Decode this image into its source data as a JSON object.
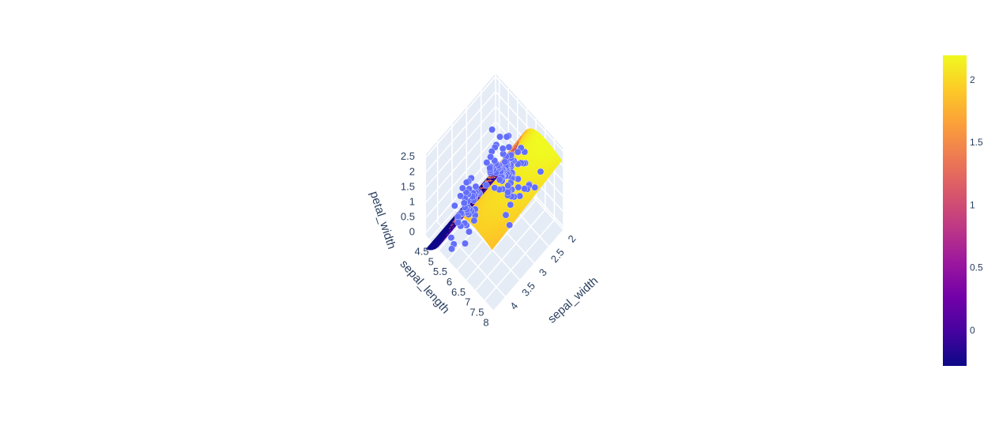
{
  "chart_data": {
    "type": "scatter",
    "subtype": "3d-scatter-with-surface",
    "title": "",
    "axes": {
      "x": {
        "label": "sepal_length",
        "ticks": [
          "4.5",
          "5",
          "5.5",
          "6",
          "6.5",
          "7",
          "7.5",
          "8"
        ],
        "range": [
          4.3,
          8.0
        ]
      },
      "y": {
        "label": "sepal_width",
        "ticks": [
          "2",
          "2.5",
          "3",
          "3.5",
          "4"
        ],
        "range": [
          2.0,
          4.4
        ]
      },
      "z": {
        "label": "petal_width",
        "ticks": [
          "0",
          "0.5",
          "1",
          "1.5",
          "2",
          "2.5"
        ],
        "range": [
          -0.1,
          2.6
        ]
      }
    },
    "grid": true,
    "colorbar": {
      "ticks": [
        "0",
        "0.5",
        "1",
        "1.5",
        "2"
      ],
      "range": [
        -0.28,
        2.2
      ],
      "colorscale": [
        "#0d0887",
        "#46039f",
        "#7201a8",
        "#9c179e",
        "#bd3786",
        "#d8576b",
        "#ed7953",
        "#fb9f3a",
        "#fdca26",
        "#f0f921"
      ],
      "placement": "right"
    },
    "marker_color": "#636efa",
    "points": [
      [
        5.1,
        3.5,
        0.2
      ],
      [
        4.9,
        3.0,
        0.2
      ],
      [
        4.7,
        3.2,
        0.2
      ],
      [
        4.6,
        3.1,
        0.2
      ],
      [
        5.0,
        3.6,
        0.2
      ],
      [
        5.4,
        3.9,
        0.4
      ],
      [
        4.6,
        3.4,
        0.3
      ],
      [
        5.0,
        3.4,
        0.2
      ],
      [
        4.4,
        2.9,
        0.2
      ],
      [
        4.9,
        3.1,
        0.1
      ],
      [
        5.4,
        3.7,
        0.2
      ],
      [
        4.8,
        3.4,
        0.2
      ],
      [
        4.8,
        3.0,
        0.1
      ],
      [
        4.3,
        3.0,
        0.1
      ],
      [
        5.8,
        4.0,
        0.2
      ],
      [
        5.7,
        4.4,
        0.4
      ],
      [
        5.4,
        3.9,
        0.4
      ],
      [
        5.1,
        3.5,
        0.3
      ],
      [
        5.7,
        3.8,
        0.3
      ],
      [
        5.1,
        3.8,
        0.3
      ],
      [
        5.4,
        3.4,
        0.2
      ],
      [
        5.1,
        3.7,
        0.4
      ],
      [
        4.6,
        3.6,
        0.2
      ],
      [
        5.1,
        3.3,
        0.5
      ],
      [
        4.8,
        3.4,
        0.2
      ],
      [
        5.0,
        3.0,
        0.2
      ],
      [
        5.0,
        3.4,
        0.4
      ],
      [
        5.2,
        3.5,
        0.2
      ],
      [
        5.2,
        3.4,
        0.2
      ],
      [
        4.7,
        3.2,
        0.2
      ],
      [
        4.8,
        3.1,
        0.2
      ],
      [
        5.4,
        3.4,
        0.4
      ],
      [
        5.2,
        4.1,
        0.1
      ],
      [
        5.5,
        4.2,
        0.2
      ],
      [
        4.9,
        3.1,
        0.2
      ],
      [
        5.0,
        3.2,
        0.2
      ],
      [
        5.5,
        3.5,
        0.2
      ],
      [
        4.4,
        3.0,
        0.2
      ],
      [
        5.1,
        3.4,
        0.2
      ],
      [
        5.0,
        3.5,
        0.3
      ],
      [
        4.5,
        2.3,
        0.3
      ],
      [
        4.4,
        3.2,
        0.2
      ],
      [
        5.0,
        3.5,
        0.6
      ],
      [
        5.1,
        3.8,
        0.4
      ],
      [
        4.8,
        3.0,
        0.3
      ],
      [
        5.1,
        3.8,
        0.2
      ],
      [
        4.6,
        3.2,
        0.2
      ],
      [
        5.3,
        3.7,
        0.2
      ],
      [
        7.0,
        3.2,
        1.4
      ],
      [
        6.4,
        3.2,
        1.5
      ],
      [
        6.9,
        3.1,
        1.5
      ],
      [
        5.5,
        2.3,
        1.3
      ],
      [
        6.5,
        2.8,
        1.5
      ],
      [
        5.7,
        2.8,
        1.3
      ],
      [
        6.3,
        3.3,
        1.6
      ],
      [
        4.9,
        2.4,
        1.0
      ],
      [
        6.6,
        2.9,
        1.3
      ],
      [
        5.2,
        2.7,
        1.4
      ],
      [
        5.0,
        2.0,
        1.0
      ],
      [
        5.9,
        3.0,
        1.5
      ],
      [
        6.0,
        2.2,
        1.0
      ],
      [
        6.1,
        2.9,
        1.4
      ],
      [
        5.6,
        2.9,
        1.3
      ],
      [
        6.7,
        3.1,
        1.4
      ],
      [
        5.6,
        3.0,
        1.5
      ],
      [
        5.8,
        2.7,
        1.0
      ],
      [
        6.2,
        2.2,
        1.5
      ],
      [
        5.6,
        2.5,
        1.1
      ],
      [
        5.9,
        3.2,
        1.8
      ],
      [
        6.1,
        2.8,
        1.3
      ],
      [
        6.3,
        2.5,
        1.5
      ],
      [
        6.4,
        2.9,
        1.3
      ],
      [
        6.6,
        3.0,
        1.4
      ],
      [
        6.8,
        2.8,
        1.4
      ],
      [
        6.7,
        3.0,
        1.7
      ],
      [
        6.0,
        2.9,
        1.5
      ],
      [
        5.7,
        2.6,
        1.0
      ],
      [
        5.5,
        2.4,
        1.1
      ],
      [
        5.8,
        2.7,
        1.2
      ],
      [
        6.0,
        2.7,
        1.6
      ],
      [
        5.4,
        3.0,
        1.5
      ],
      [
        6.0,
        3.4,
        1.6
      ],
      [
        6.7,
        3.1,
        1.5
      ],
      [
        6.3,
        2.3,
        1.3
      ],
      [
        5.6,
        3.0,
        1.3
      ],
      [
        5.5,
        2.5,
        1.3
      ],
      [
        6.1,
        3.0,
        1.4
      ],
      [
        5.8,
        2.6,
        1.2
      ],
      [
        6.3,
        3.3,
        2.5
      ],
      [
        5.8,
        2.7,
        1.9
      ],
      [
        7.1,
        3.0,
        2.1
      ],
      [
        6.3,
        2.9,
        1.8
      ],
      [
        6.5,
        3.0,
        2.2
      ],
      [
        7.6,
        3.0,
        2.1
      ],
      [
        4.9,
        2.5,
        1.7
      ],
      [
        7.3,
        2.9,
        1.8
      ],
      [
        6.7,
        2.5,
        1.8
      ],
      [
        7.2,
        3.6,
        2.5
      ],
      [
        6.5,
        3.2,
        2.0
      ],
      [
        6.4,
        2.7,
        1.9
      ],
      [
        6.8,
        3.0,
        2.1
      ],
      [
        5.7,
        2.5,
        2.0
      ],
      [
        5.8,
        2.8,
        2.4
      ],
      [
        6.4,
        3.2,
        2.3
      ],
      [
        7.7,
        3.8,
        2.2
      ],
      [
        7.7,
        2.6,
        2.3
      ],
      [
        6.0,
        2.2,
        1.5
      ],
      [
        6.9,
        3.2,
        2.3
      ],
      [
        5.6,
        2.8,
        2.0
      ],
      [
        7.7,
        2.8,
        2.0
      ],
      [
        6.3,
        2.7,
        1.8
      ],
      [
        6.7,
        3.3,
        2.1
      ],
      [
        7.2,
        3.2,
        1.8
      ],
      [
        6.2,
        2.8,
        1.8
      ],
      [
        6.1,
        3.0,
        1.8
      ],
      [
        6.4,
        2.8,
        2.1
      ],
      [
        7.2,
        3.0,
        1.6
      ],
      [
        7.4,
        2.8,
        1.9
      ],
      [
        7.9,
        3.8,
        2.0
      ],
      [
        6.4,
        2.8,
        2.2
      ],
      [
        6.3,
        2.8,
        1.5
      ],
      [
        6.1,
        2.6,
        1.4
      ],
      [
        7.7,
        3.0,
        2.3
      ],
      [
        6.3,
        3.4,
        2.4
      ],
      [
        6.4,
        3.1,
        1.8
      ],
      [
        6.0,
        3.0,
        1.8
      ],
      [
        6.9,
        3.1,
        2.1
      ],
      [
        6.7,
        3.1,
        2.4
      ],
      [
        6.9,
        3.1,
        2.3
      ],
      [
        6.8,
        3.2,
        2.3
      ],
      [
        6.7,
        3.3,
        2.5
      ],
      [
        6.7,
        3.0,
        2.3
      ],
      [
        6.3,
        2.5,
        1.9
      ],
      [
        6.5,
        3.0,
        2.0
      ],
      [
        6.2,
        3.4,
        2.3
      ],
      [
        5.9,
        3.0,
        1.8
      ]
    ]
  }
}
